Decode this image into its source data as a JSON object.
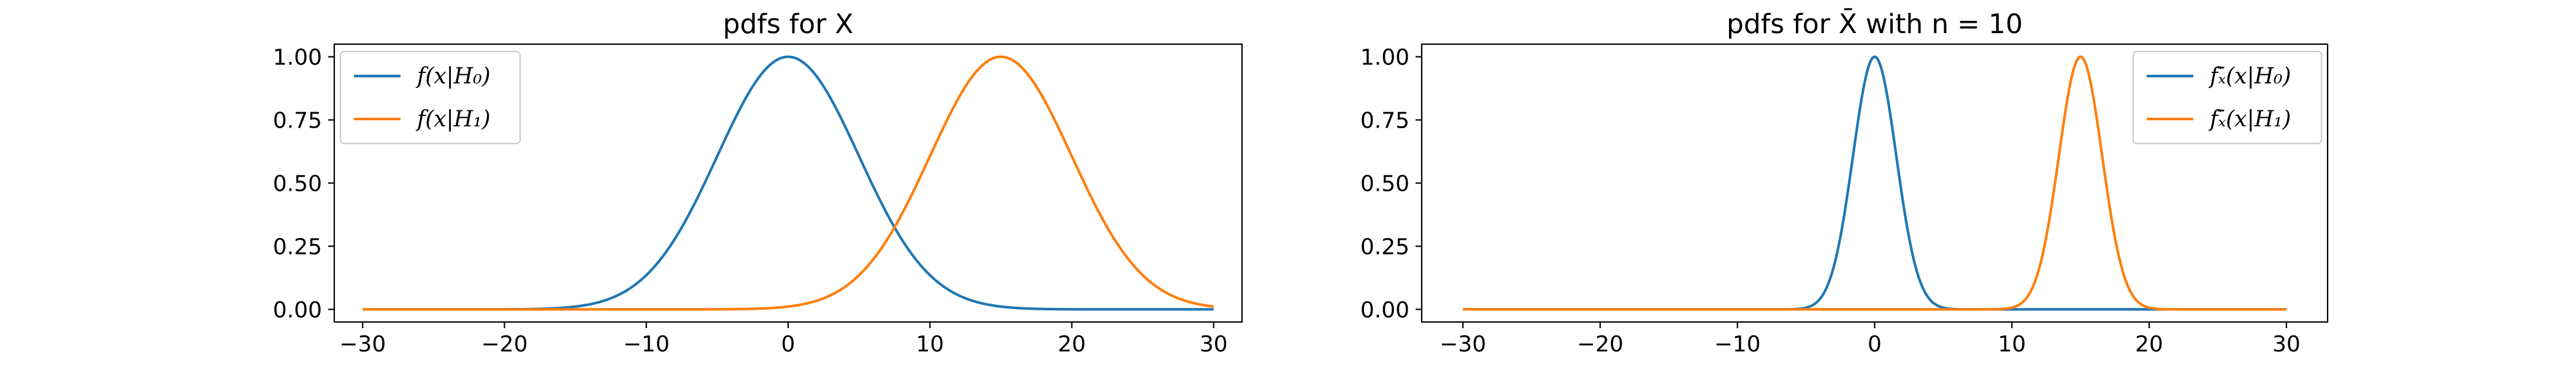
{
  "chart_data": [
    {
      "type": "line",
      "title": "pdfs for X",
      "xlim": [
        -32,
        32
      ],
      "ylim": [
        -0.05,
        1.05
      ],
      "x_ticks": [
        -30,
        -20,
        -10,
        0,
        10,
        20,
        30
      ],
      "y_ticks": [
        0.0,
        0.25,
        0.5,
        0.75,
        1.0
      ],
      "x_tick_labels": [
        "−30",
        "−20",
        "−10",
        "0",
        "10",
        "20",
        "30"
      ],
      "y_tick_labels": [
        "0.00",
        "0.25",
        "0.50",
        "0.75",
        "1.00"
      ],
      "legend_position": "top-left",
      "series": [
        {
          "name": "f(x|H₀)",
          "color": "#1f77b4",
          "mean": 0,
          "sd": 5,
          "x_range": [
            -30,
            30
          ]
        },
        {
          "name": "f(x|H₁)",
          "color": "#ff7f0e",
          "mean": 15,
          "sd": 5,
          "x_range": [
            -30,
            30
          ]
        }
      ]
    },
    {
      "type": "line",
      "title": "pdfs for X̄ with n = 10",
      "xlim": [
        -33,
        33
      ],
      "ylim": [
        -0.05,
        1.05
      ],
      "x_ticks": [
        -30,
        -20,
        -10,
        0,
        10,
        20,
        30
      ],
      "y_ticks": [
        0.0,
        0.25,
        0.5,
        0.75,
        1.0
      ],
      "x_tick_labels": [
        "−30",
        "−20",
        "−10",
        "0",
        "10",
        "20",
        "30"
      ],
      "y_tick_labels": [
        "0.00",
        "0.25",
        "0.50",
        "0.75",
        "1.00"
      ],
      "legend_position": "top-right",
      "series": [
        {
          "name": "fₓ̄(x|H₀)",
          "color": "#1f77b4",
          "mean": 0,
          "sd": 1.58,
          "x_range": [
            -30,
            30
          ]
        },
        {
          "name": "fₓ̄(x|H₁)",
          "color": "#ff7f0e",
          "mean": 15,
          "sd": 1.58,
          "x_range": [
            -30,
            30
          ]
        }
      ]
    }
  ]
}
